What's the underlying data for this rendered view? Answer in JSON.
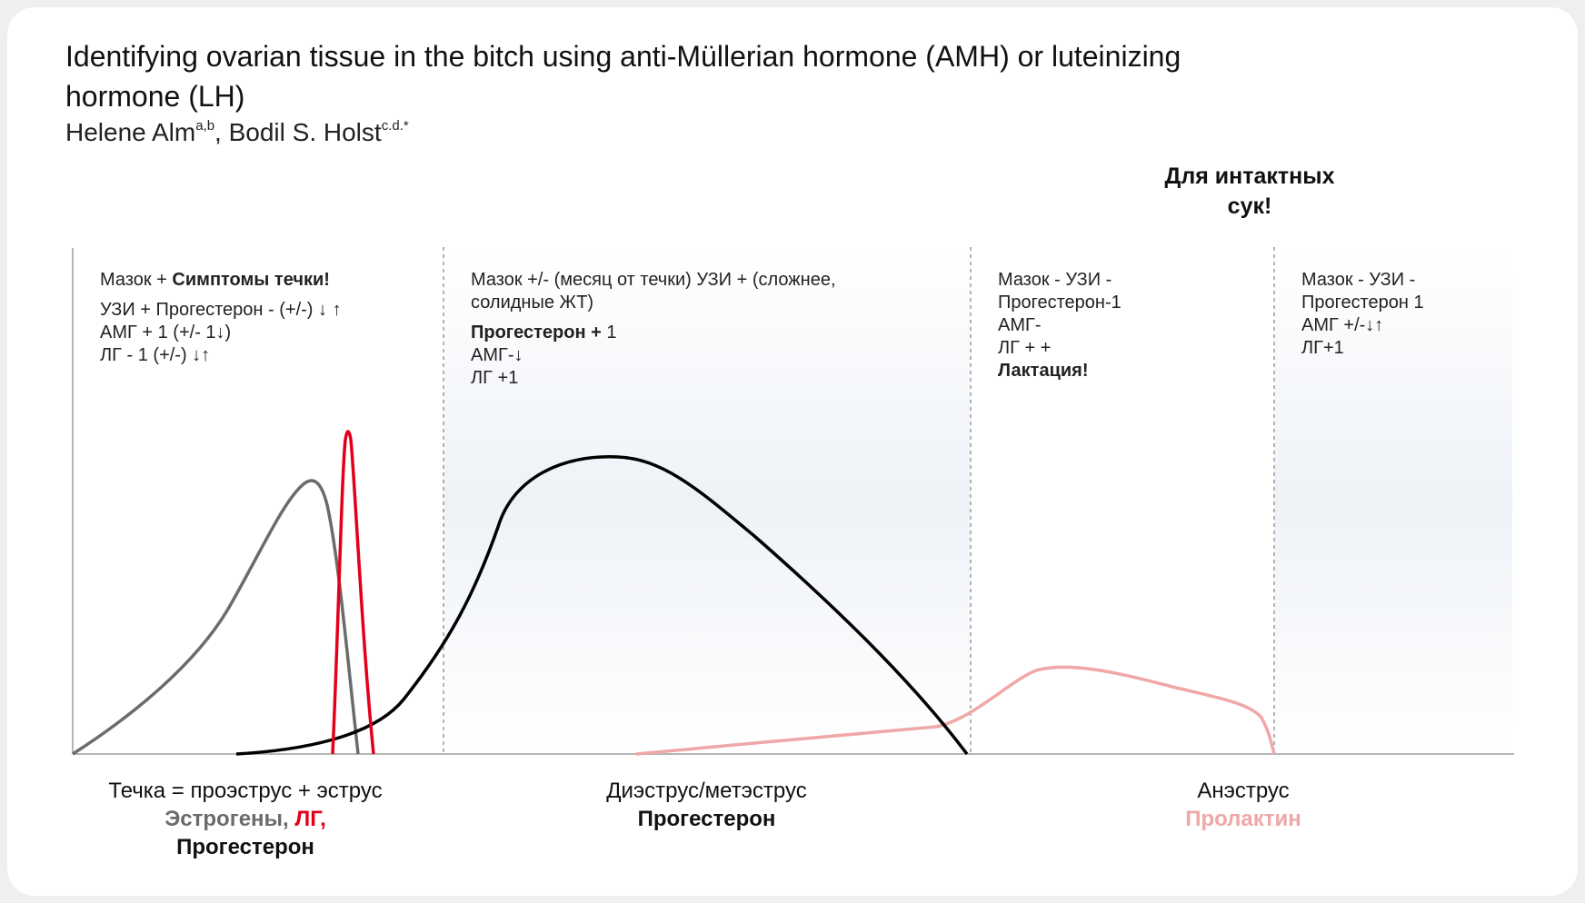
{
  "title": "Identifying ovarian tissue in the bitch using anti-Müllerian hormone (AMH) or luteinizing hormone (LH)",
  "authors": {
    "author1": "Helene Alm",
    "author1_sup": "a,b",
    "separator": ", ",
    "author2": "Bodil S. Holst",
    "author2_sup": "c.d.*"
  },
  "intact_note": "Для интактных сук!",
  "phases": [
    {
      "line1_a": "Мазок + ",
      "line1_b": "Симптомы течки!",
      "line2": "УЗИ + Прогестерон - (+/-) ↓ ↑",
      "line3": "АМГ + 1 (+/- 1↓)",
      "line4": "ЛГ - 1 (+/-) ↓↑"
    },
    {
      "line1": "Мазок +/- (месяц от течки) УЗИ + (сложнее,",
      "line2": "солидные ЖТ)",
      "line3_a": "Прогестерон + ",
      "line3_b": "1",
      "line4": "АМГ-↓",
      "line5": "ЛГ +1"
    },
    {
      "line1": "Мазок - УЗИ -",
      "line2": "Прогестерон-1",
      "line3": "АМГ-",
      "line4": "ЛГ + +",
      "line5": "Лактация!"
    },
    {
      "line1": "Мазок - УЗИ -",
      "line2": "Прогестерон 1",
      "line3": "АМГ +/-↓↑",
      "line4": "ЛГ+1"
    }
  ],
  "axis_labels": {
    "estrus": {
      "name": "Течка = проэструс + эструс",
      "h1": "Эстрогены, ",
      "h2": "ЛГ,",
      "h3": "Прогестерон"
    },
    "diestrus": {
      "name": "Диэструс/метэструс",
      "hormone": "Прогестерон"
    },
    "anestrus": {
      "name": "Анэструс",
      "hormone": "Пролактин"
    }
  },
  "colors": {
    "estrogen": "#6b6b6b",
    "lh": "#e2001a",
    "progesterone": "#000000",
    "prolactin": "#efa7a7",
    "divider": "#9a9a9a",
    "shade": "#e7edf4"
  }
}
